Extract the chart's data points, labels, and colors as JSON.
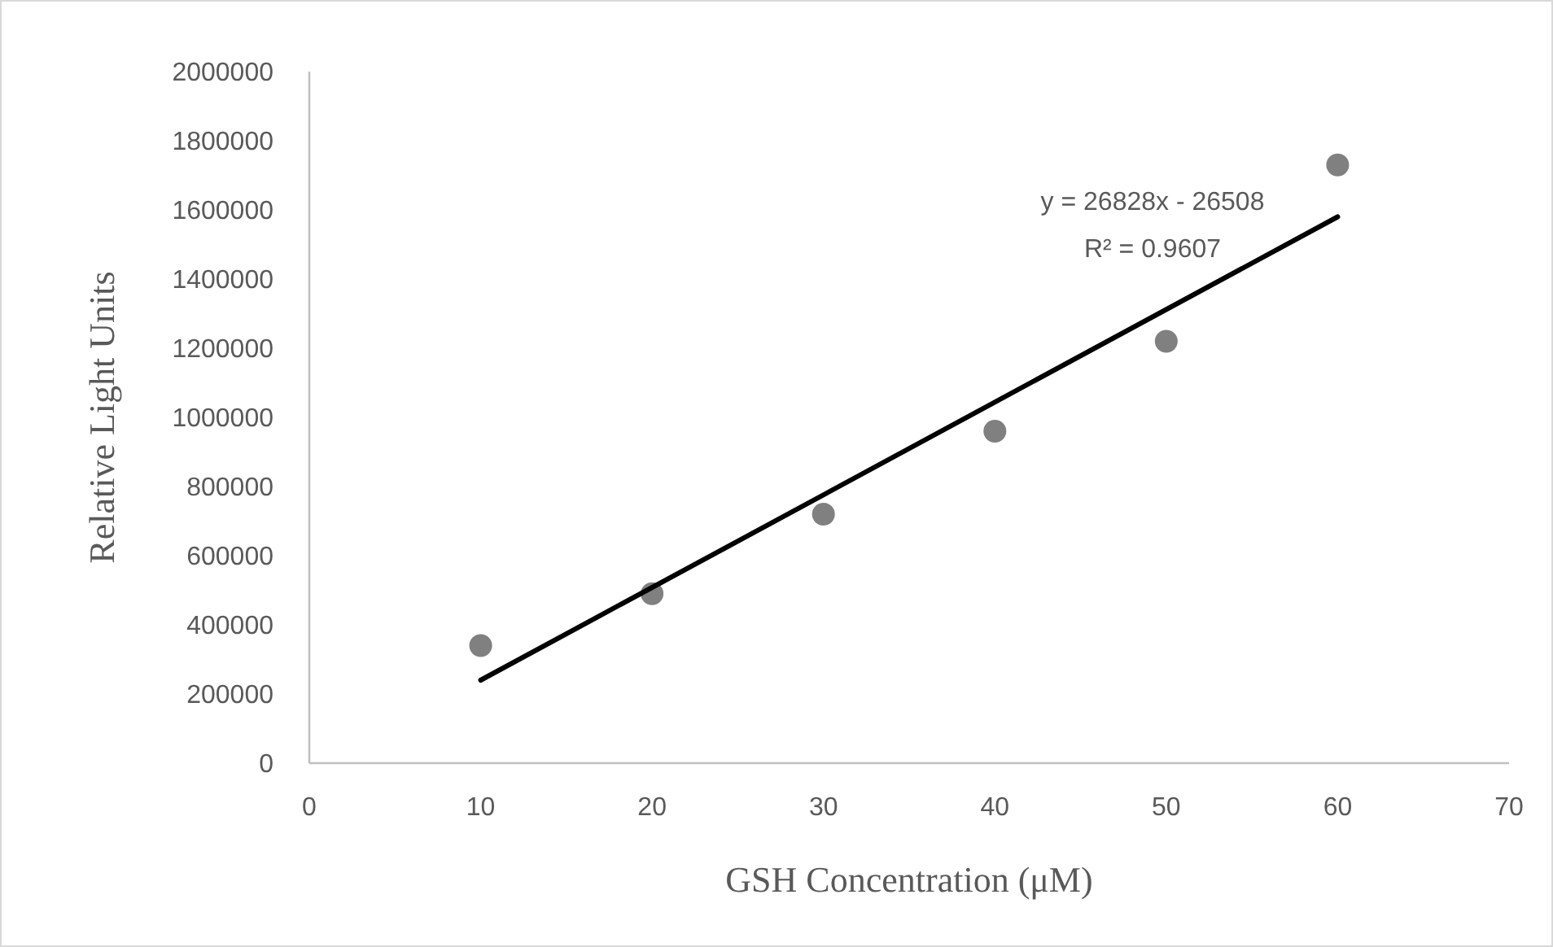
{
  "chart_data": {
    "type": "scatter",
    "xlabel": "GSH Concentration (μM)",
    "ylabel": "Relative Light Units",
    "series": [
      {
        "color": "#808080",
        "marker": "circle",
        "x": [
          10,
          20,
          30,
          40,
          50,
          60
        ],
        "values": [
          340000,
          490000,
          720000,
          960000,
          1220000,
          1730000
        ]
      },
      {
        "type": "line",
        "color": "#000000",
        "x": [
          10,
          60
        ],
        "values": [
          240000,
          1580000
        ]
      }
    ],
    "xlim": [
      0,
      70
    ],
    "xticks": [
      0,
      10,
      20,
      30,
      40,
      50,
      60,
      70
    ],
    "ylim": [
      0,
      2000000
    ],
    "yticks": [
      0,
      200000,
      400000,
      600000,
      800000,
      1000000,
      1200000,
      1400000,
      1600000,
      1800000,
      2000000
    ],
    "annotations": [
      "y = 26828x - 26508",
      "R² = 0.9607"
    ]
  }
}
